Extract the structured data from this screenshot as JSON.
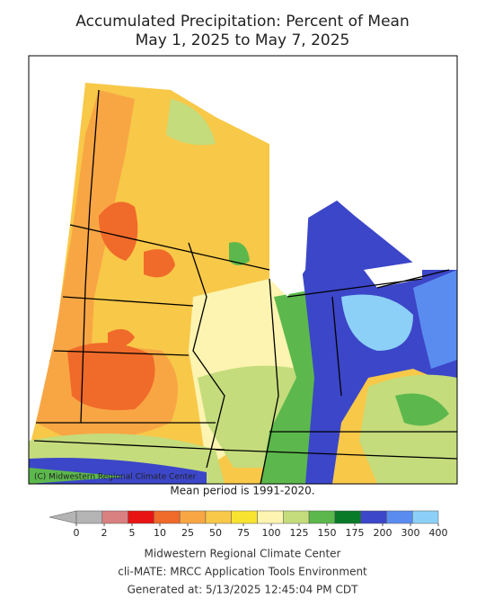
{
  "title": "Accumulated Precipitation: Percent of Mean",
  "subtitle": "May 1, 2025 to May 7, 2025",
  "copyright": "(C) Midwestern Regional Climate Center",
  "note": "Mean period is 1991-2020.",
  "legend": {
    "ticks": [
      0,
      2,
      5,
      10,
      25,
      50,
      75,
      100,
      125,
      150,
      175,
      200,
      300,
      400
    ],
    "colors": [
      "#b4b4b4",
      "#d98080",
      "#e81414",
      "#f06a2a",
      "#f8a644",
      "#f8c848",
      "#f8e430",
      "#fcf4b0",
      "#c4dc7c",
      "#5cb84c",
      "#087a28",
      "#3c46c8",
      "#5a8cf0",
      "#8cd0f8"
    ]
  },
  "footer": [
    "Midwestern Regional Climate Center",
    "cli-MATE: MRCC Application Tools Environment",
    "Generated at: 5/13/2025 12:45:04 PM CDT"
  ]
}
